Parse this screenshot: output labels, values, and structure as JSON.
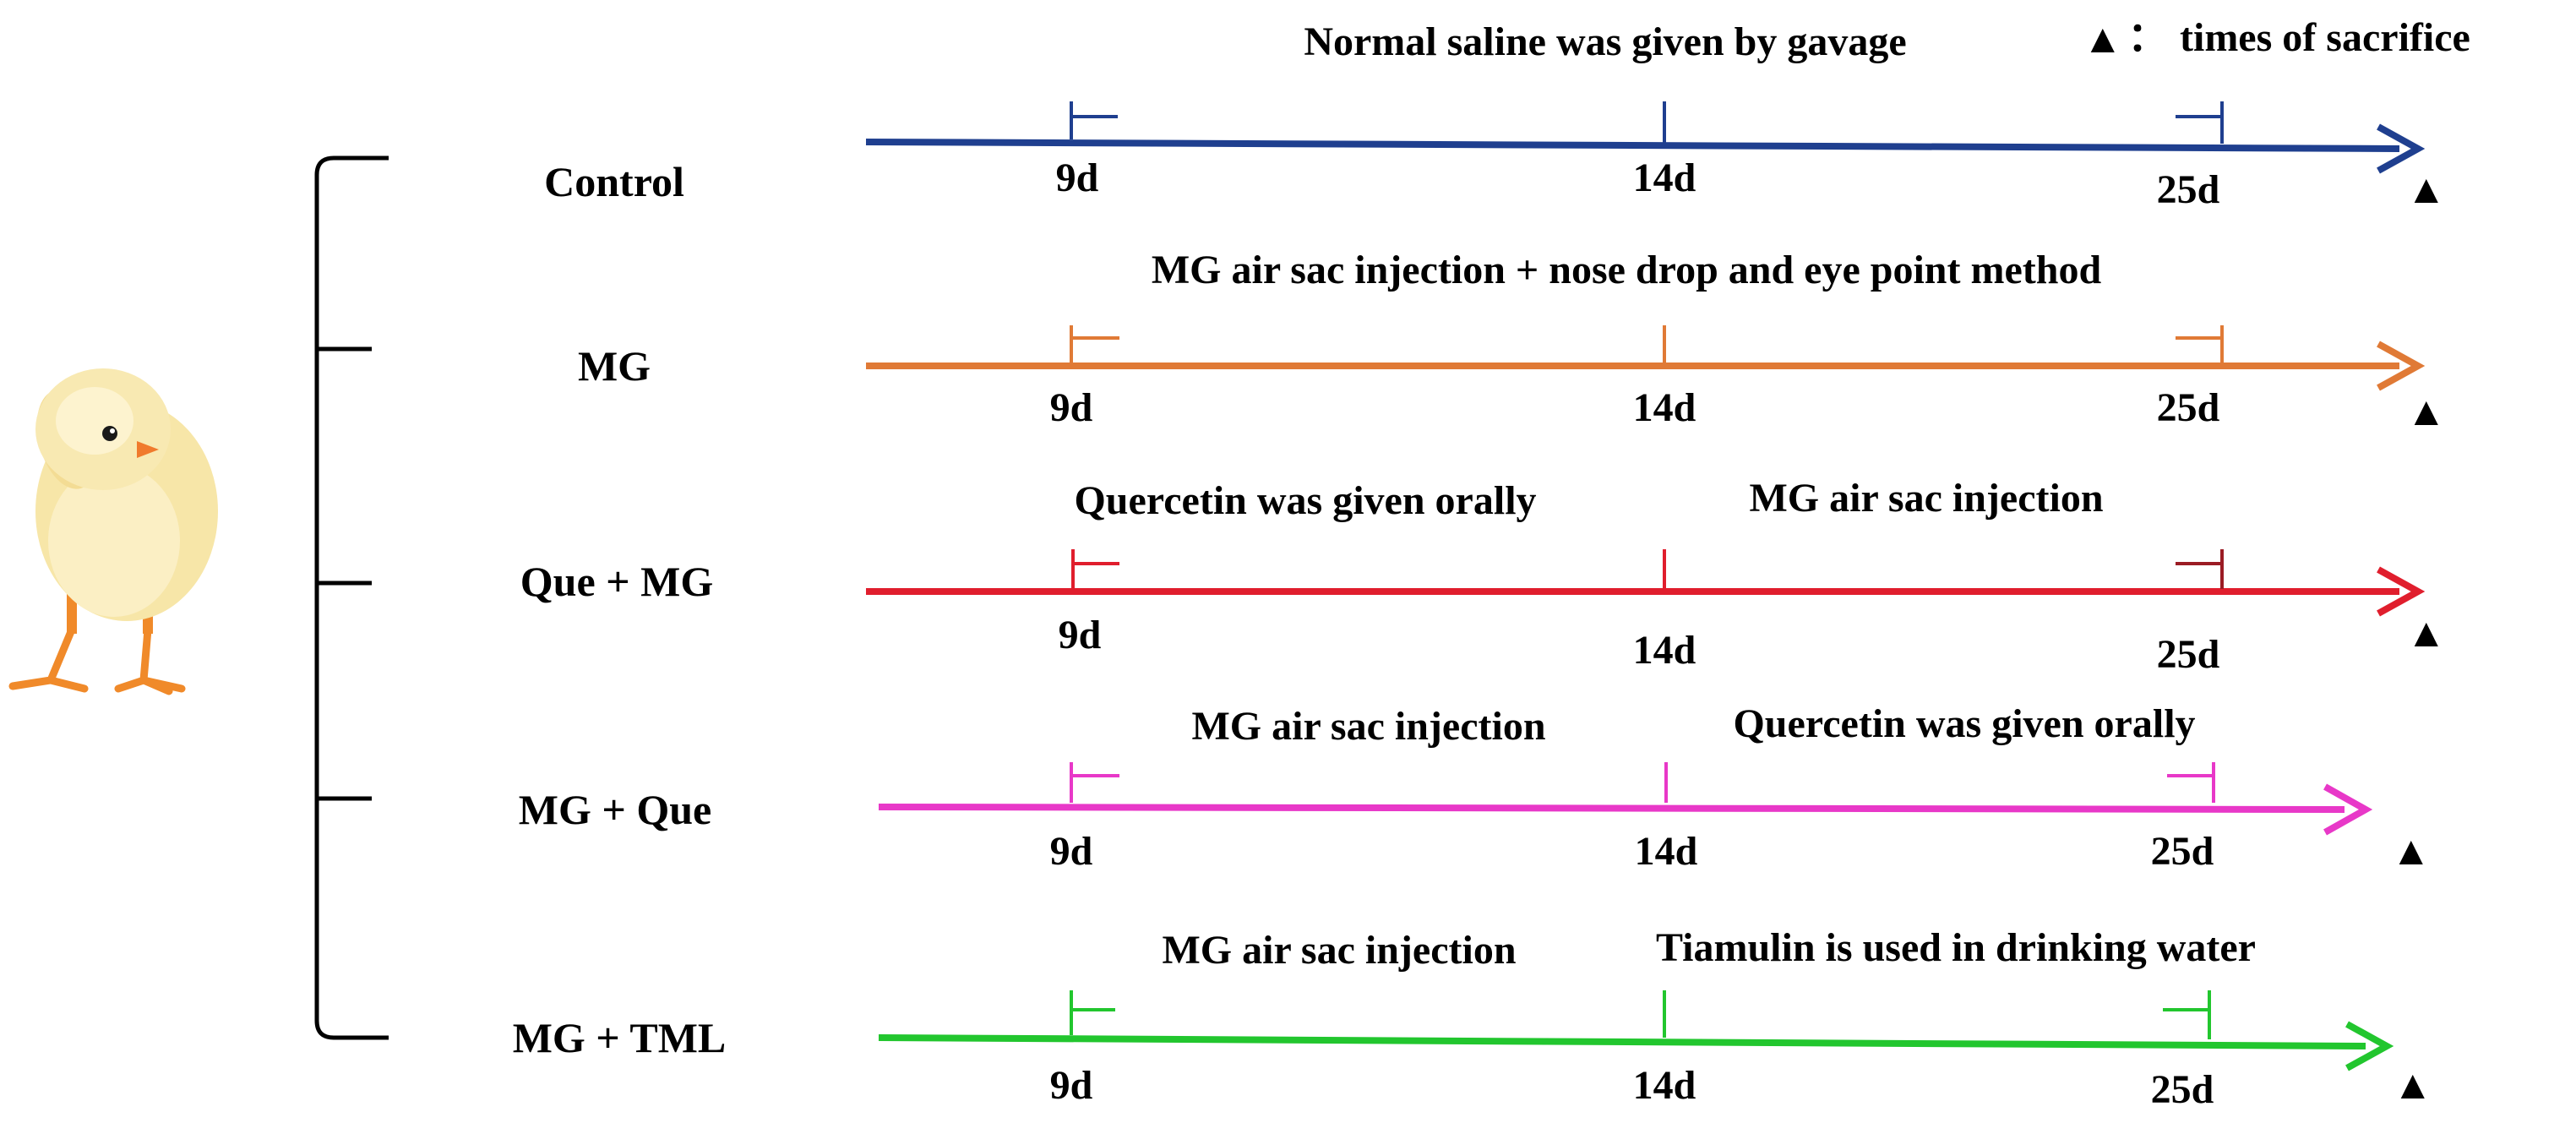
{
  "legend": {
    "symbol": "▲",
    "separator": "：",
    "text": "times of sacrifice"
  },
  "groups": [
    {
      "name": "Control",
      "color": "#1f3f8f",
      "annotations": [
        "Normal saline was given by gavage"
      ],
      "ticks": [
        "9d",
        "14d",
        "25d"
      ],
      "markers": [
        "▲"
      ]
    },
    {
      "name": "MG",
      "color": "#e07a36",
      "annotations": [
        "MG air sac injection + nose drop and eye point method"
      ],
      "ticks": [
        "9d",
        "14d",
        "25d"
      ],
      "markers": [
        "▲"
      ]
    },
    {
      "name": "Que + MG",
      "color": "#e01e2d",
      "annotations": [
        "Quercetin was given orally",
        "MG air sac injection"
      ],
      "ticks": [
        "9d",
        "14d",
        "25d"
      ],
      "markers": [
        "▲"
      ]
    },
    {
      "name": "MG + Que",
      "color": "#e838c8",
      "annotations": [
        "MG air sac injection",
        "Quercetin was given orally"
      ],
      "ticks": [
        "9d",
        "14d",
        "25d"
      ],
      "markers": [
        "▲"
      ]
    },
    {
      "name": "MG + TML",
      "color": "#22c62e",
      "annotations": [
        "MG air sac injection",
        "Tiamulin is used in drinking water"
      ],
      "ticks": [
        "9d",
        "14d",
        "25d"
      ],
      "markers": [
        "▲"
      ]
    }
  ],
  "accent_colors": {
    "que_mg_end_tick": "#9b1c24"
  },
  "image": {
    "subject": "chick-photo"
  }
}
